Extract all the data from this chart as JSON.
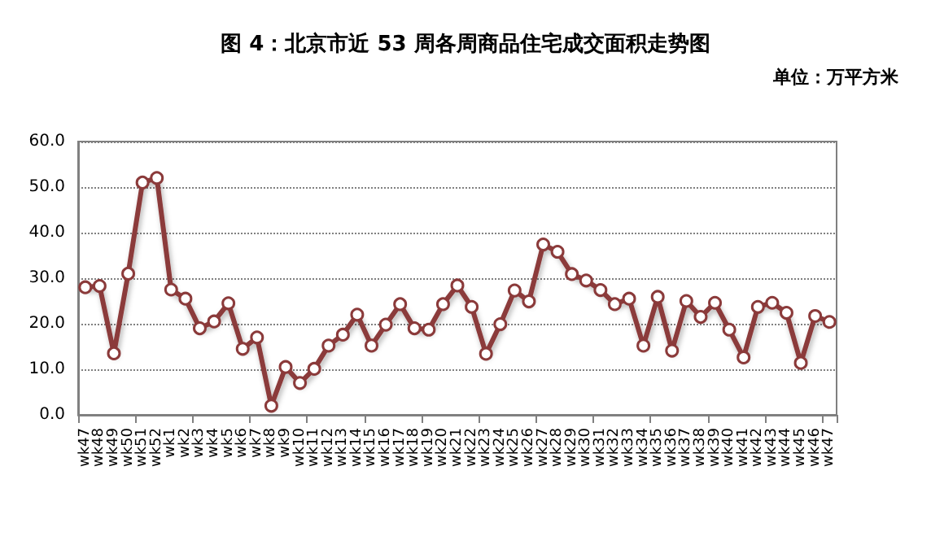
{
  "chart_data": {
    "type": "line",
    "title": "图 4：北京市近 53 周各周商品住宅成交面积走势图",
    "annotations": [
      "单位：万平方米"
    ],
    "categories": [
      "wk47",
      "wk48",
      "wk49",
      "wk50",
      "wk51",
      "wk52",
      "wk1",
      "wk2",
      "wk3",
      "wk4",
      "wk5",
      "wk6",
      "wk7",
      "wk8",
      "wk9",
      "wk10",
      "wk11",
      "wk12",
      "wk13",
      "wk14",
      "wk15",
      "wk16",
      "wk17",
      "wk18",
      "wk19",
      "wk20",
      "wk21",
      "wk22",
      "wk23",
      "wk24",
      "wk25",
      "wk26",
      "wk27",
      "wk28",
      "wk29",
      "wk30",
      "wk31",
      "wk32",
      "wk33",
      "wk34",
      "wk35",
      "wk36",
      "wk37",
      "wk38",
      "wk39",
      "wk40",
      "wk41",
      "wk42",
      "wk43",
      "wk44",
      "wk45",
      "wk46",
      "wk47"
    ],
    "series": [
      {
        "color": "#8b3a3a",
        "values": [
          28,
          28.3,
          13.5,
          31,
          51,
          52,
          27.5,
          25.5,
          19,
          20.5,
          24.5,
          14.5,
          17,
          2,
          10.5,
          7,
          10.1,
          15.2,
          17.6,
          22,
          15.2,
          19.8,
          24.3,
          19,
          18.7,
          24.3,
          28.4,
          23.7,
          13.4,
          19.9,
          27.3,
          24.9,
          37.4,
          35.8,
          30.9,
          29.5,
          27.4,
          24.3,
          25.5,
          15.2,
          25.9,
          14.1,
          25,
          21.5,
          24.6,
          18.7,
          12.6,
          23.7,
          24.6,
          22.4,
          11.4,
          21.7,
          20.4
        ]
      }
    ],
    "ylim": [
      0,
      60
    ],
    "yticks": [
      {
        "value": 0,
        "label": "0.0"
      },
      {
        "value": 10,
        "label": "10.0"
      },
      {
        "value": 20,
        "label": "20.0"
      },
      {
        "value": 30,
        "label": "30.0"
      },
      {
        "value": 40,
        "label": "40.0"
      },
      {
        "value": 50,
        "label": "50.0"
      },
      {
        "value": 60,
        "label": "60.0"
      }
    ],
    "grid": "y",
    "marker": "circle",
    "line_style": "solid"
  }
}
